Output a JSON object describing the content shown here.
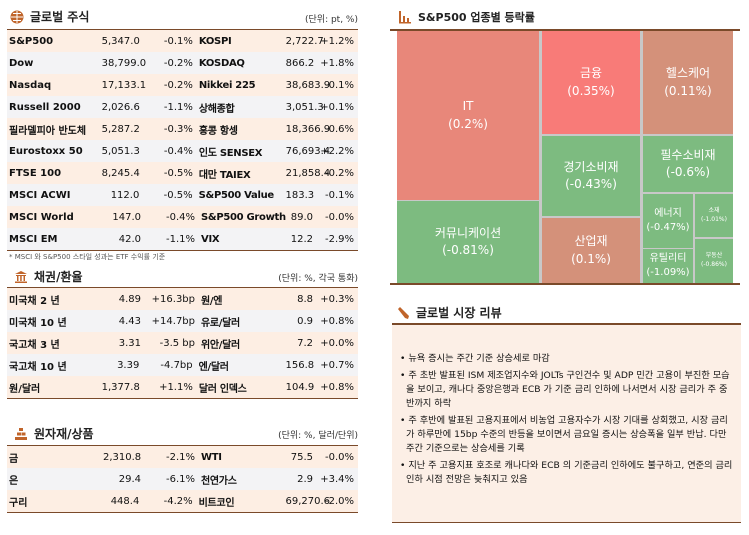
{
  "global_stocks": {
    "title": "글로벌 주식",
    "unit": "(단위: pt, %)",
    "note": "* MSCI 와 S&P500 스타일 성과는 ETF 수익률 기준",
    "rows": [
      [
        "S&P500",
        "5,347.0",
        "-0.1%",
        "KOSPI",
        "2,722.7",
        "+1.2%"
      ],
      [
        "Dow",
        "38,799.0",
        "-0.2%",
        "KOSDAQ",
        "866.2",
        "+1.8%"
      ],
      [
        "Nasdaq",
        "17,133.1",
        "-0.2%",
        "Nikkei 225",
        "38,683.9",
        "-0.1%"
      ],
      [
        "Russell 2000",
        "2,026.6",
        "-1.1%",
        "상해종합",
        "3,051.3",
        "+0.1%"
      ],
      [
        "필라델피아 반도체",
        "5,287.2",
        "-0.3%",
        "홍콩 항셍",
        "18,366.9",
        "-0.6%"
      ],
      [
        "Eurostoxx 50",
        "5,051.3",
        "-0.4%",
        "인도 SENSEX",
        "76,693.4",
        "+2.2%"
      ],
      [
        "FTSE 100",
        "8,245.4",
        "-0.5%",
        "대만 TAIEX",
        "21,858.4",
        "-0.2%"
      ],
      [
        "MSCI ACWI",
        "112.0",
        "-0.5%",
        "S&P500 Value",
        "183.3",
        "-0.1%"
      ],
      [
        "MSCI World",
        "147.0",
        "-0.4%",
        "S&P500 Growth",
        "89.0",
        "-0.0%"
      ],
      [
        "MSCI EM",
        "42.0",
        "-1.1%",
        "VIX",
        "12.2",
        "-2.9%"
      ]
    ]
  },
  "bonds_fx": {
    "title": "채권/환율",
    "unit": "(단위: %, 각국 통화)",
    "rows": [
      [
        "미국채 2 년",
        "4.89",
        "+16.3bp",
        "원/엔",
        "8.8",
        "+0.3%"
      ],
      [
        "미국채 10 년",
        "4.43",
        "+14.7bp",
        "유로/달러",
        "0.9",
        "+0.8%"
      ],
      [
        "국고채 3 년",
        "3.31",
        "-3.5 bp",
        "위안/달러",
        "7.2",
        "+0.0%"
      ],
      [
        "국고채 10 년",
        "3.39",
        "-4.7bp",
        "엔/달러",
        "156.8",
        "+0.7%"
      ],
      [
        "원/달러",
        "1,377.8",
        "+1.1%",
        "달러 인덱스",
        "104.9",
        "+0.8%"
      ]
    ]
  },
  "commodities": {
    "title": "원자재/상품",
    "unit": "(단위: %, 달러/단위)",
    "rows": [
      [
        "금",
        "2,310.8",
        "-2.1%",
        "WTI",
        "75.5",
        "-0.0%"
      ],
      [
        "은",
        "29.4",
        "-6.1%",
        "천연가스",
        "2.9",
        "+3.4%"
      ],
      [
        "구리",
        "448.4",
        "-4.2%",
        "비트코인",
        "69,270.6",
        "-2.0%"
      ]
    ]
  },
  "treemap": {
    "title": "S&P500 업종별 등락률",
    "colors": {
      "up_strong": "#f87b78",
      "up": "#e8877a",
      "up_weak": "#d4917a",
      "down": "#7dbb80"
    },
    "sectors": [
      {
        "name": "IT",
        "value": "(0.2%)"
      },
      {
        "name": "커뮤니케이션",
        "value": "(-0.81%)"
      },
      {
        "name": "금융",
        "value": "(0.35%)"
      },
      {
        "name": "헬스케어",
        "value": "(0.11%)"
      },
      {
        "name": "경기소비재",
        "value": "(-0.43%)"
      },
      {
        "name": "산업재",
        "value": "(0.1%)"
      },
      {
        "name": "필수소비재",
        "value": "(-0.6%)"
      },
      {
        "name": "에너지",
        "value": "(-0.47%)"
      },
      {
        "name": "유틸리티",
        "value": "(-1.09%)"
      },
      {
        "name": "소재",
        "value": "(-1.01%)"
      },
      {
        "name": "부동산",
        "value": "(-0.86%)"
      }
    ]
  },
  "review": {
    "title": "글로벌 시장 리뷰",
    "items": [
      "• 뉴욕 증시는 주간 기준 상승세로 마감",
      "• 주 초반 발표된 ISM 제조업지수와 JOLTs 구인건수 및 ADP 민간 고용이 부진한 모습을 보이고, 캐나다 중앙은행과 ECB 가 기준 금리 인하에 나서면서 시장 금리가 주 중반까지 하락",
      "• 주 후반에 발표된 고용지표에서 비농업 고용자수가 시장 기대를 상회했고, 시장 금리가 하루만에 15bp 수준의 반등을 보이면서 금요일 증시는 상승폭을 일부 반납. 다만 주간 기준으로는 상승세를 기록",
      "• 지난 주 고용지표 호조로 캐나다와 ECB 의 기준금리 인하에도 불구하고, 연준의 금리 인하 시점 전망은 늦춰지고 있음"
    ]
  }
}
